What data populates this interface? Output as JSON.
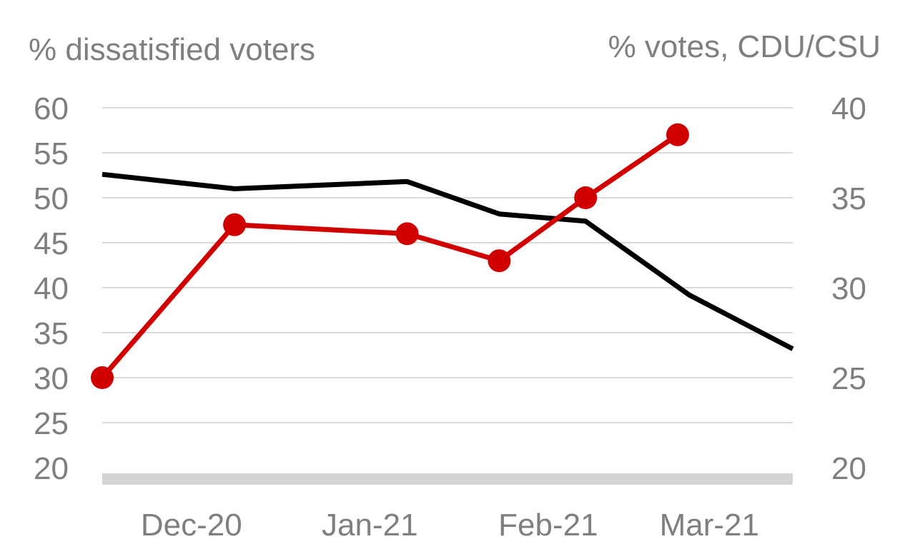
{
  "chart_data": {
    "type": "line",
    "left_axis": {
      "title": "% dissatisfied voters",
      "min": 20,
      "max": 60,
      "ticks": [
        20,
        25,
        30,
        35,
        40,
        45,
        50,
        55,
        60
      ]
    },
    "right_axis": {
      "title": "% votes, CDU/CSU",
      "min": 20,
      "max": 40,
      "ticks": [
        20,
        25,
        30,
        35,
        40
      ]
    },
    "x_axis": {
      "start": "2020-12-01",
      "end": "2021-03-31",
      "tick_labels": [
        {
          "label": "Dec-20",
          "date": "2020-12-01"
        },
        {
          "label": "Jan-21",
          "date": "2021-01-01"
        },
        {
          "label": "Feb-21",
          "date": "2021-02-01"
        },
        {
          "label": "Mar-21",
          "date": "2021-03-01"
        }
      ]
    },
    "grid": true,
    "series": [
      {
        "axis": "left",
        "color": "#d10000",
        "markers": true,
        "points": [
          {
            "date": "2020-12-01",
            "value": 30
          },
          {
            "date": "2020-12-24",
            "value": 47
          },
          {
            "date": "2021-01-23",
            "value": 46
          },
          {
            "date": "2021-02-08",
            "value": 43
          },
          {
            "date": "2021-02-23",
            "value": 50
          },
          {
            "date": "2021-03-11",
            "value": 57
          }
        ]
      },
      {
        "axis": "right",
        "color": "#000000",
        "markers": false,
        "points": [
          {
            "date": "2020-12-01",
            "value": 36.3
          },
          {
            "date": "2020-12-24",
            "value": 35.5
          },
          {
            "date": "2021-01-23",
            "value": 35.9
          },
          {
            "date": "2021-02-08",
            "value": 34.1
          },
          {
            "date": "2021-02-23",
            "value": 33.7
          },
          {
            "date": "2021-03-13",
            "value": 29.6
          },
          {
            "date": "2021-03-31",
            "value": 26.6
          }
        ]
      }
    ]
  }
}
